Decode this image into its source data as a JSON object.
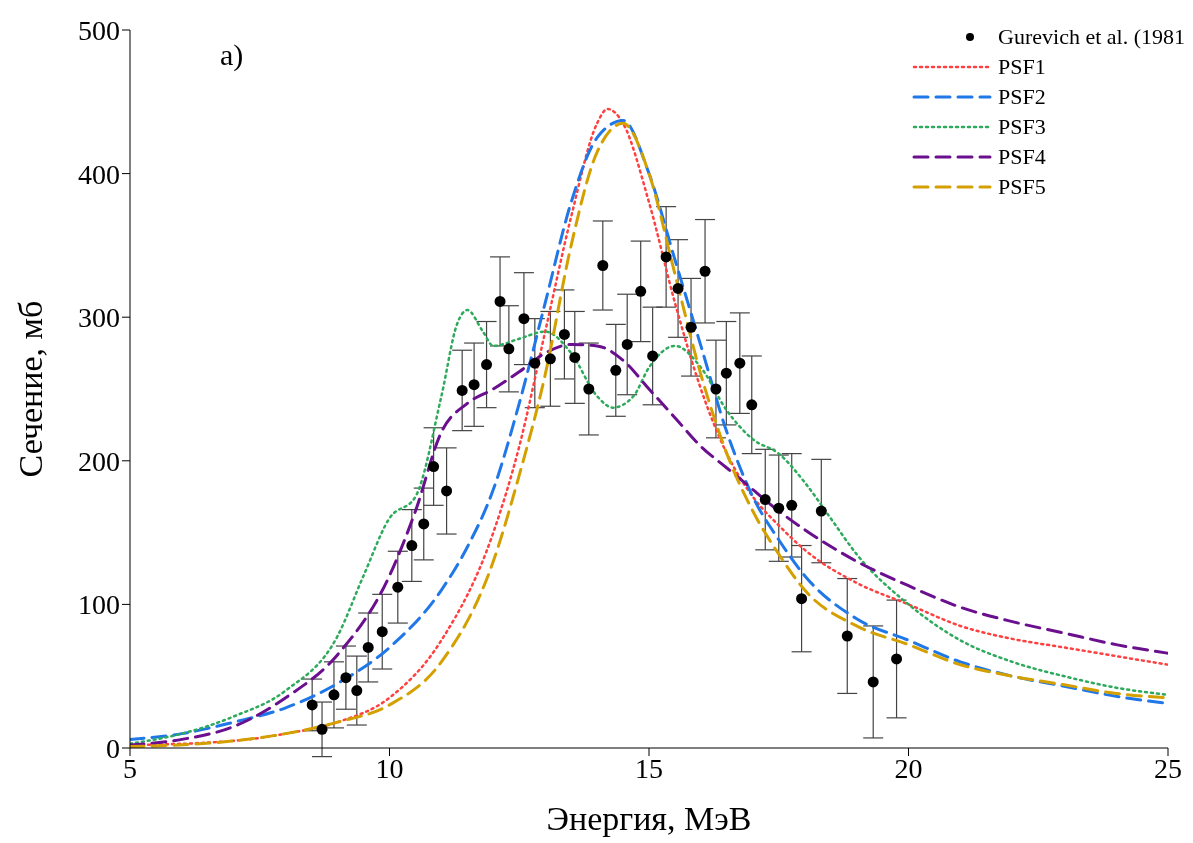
{
  "chart_data": {
    "type": "line",
    "xlabel": "Энергия, МэВ",
    "ylabel": "Сечение, мб",
    "annotations": [
      "a)"
    ],
    "xlim": [
      5,
      25
    ],
    "xticks": [
      5,
      10,
      15,
      20,
      25
    ],
    "ylim": [
      0,
      500
    ],
    "yticks": [
      0,
      100,
      200,
      300,
      400,
      500
    ],
    "grid": false,
    "legend": "top right",
    "series": [
      {
        "name": "Gurevich et al. (1981",
        "type": "scatter",
        "marker": "circle",
        "color": "#000000",
        "x": [
          8.51,
          8.7,
          8.93,
          9.16,
          9.37,
          9.59,
          9.86,
          10.16,
          10.43,
          10.66,
          10.85,
          11.1,
          11.4,
          11.63,
          11.87,
          12.13,
          12.3,
          12.59,
          12.8,
          13.1,
          13.37,
          13.57,
          13.84,
          14.11,
          14.36,
          14.58,
          14.84,
          15.07,
          15.33,
          15.56,
          15.81,
          16.08,
          16.29,
          16.49,
          16.75,
          16.98,
          17.24,
          17.5,
          17.75,
          17.94,
          18.32,
          18.82,
          19.32,
          19.77
        ],
        "values": [
          30,
          13,
          37,
          49,
          40,
          70,
          81,
          112,
          141,
          156,
          196,
          179,
          249,
          253,
          267,
          311,
          278,
          299,
          268,
          271,
          288,
          272,
          250,
          336,
          263,
          281,
          318,
          273,
          342,
          320,
          293,
          332,
          250,
          261,
          268,
          239,
          173,
          167,
          169,
          104,
          165,
          78,
          46,
          62
        ],
        "errors": [
          18,
          19,
          23,
          22,
          24,
          24,
          26,
          25,
          25,
          25,
          27,
          30,
          28,
          29,
          30,
          31,
          30,
          32,
          31,
          33,
          31,
          32,
          32,
          31,
          32,
          35,
          35,
          34,
          35,
          34,
          34,
          36,
          34,
          36,
          35,
          34,
          35,
          37,
          36,
          37,
          36,
          40,
          39,
          41
        ]
      },
      {
        "name": "PSF1",
        "line_style": "dotted",
        "color": "#ff4040",
        "x": [
          5,
          7,
          8,
          9,
          10,
          11,
          12,
          12.5,
          13,
          13.5,
          14,
          14.2,
          14.5,
          15,
          15.5,
          16,
          16.5,
          17,
          17.5,
          18,
          19,
          20,
          21,
          22,
          23,
          24,
          25
        ],
        "values": [
          2,
          5,
          10,
          18,
          35,
          75,
          150,
          210,
          290,
          370,
          435,
          445,
          435,
          380,
          310,
          250,
          205,
          175,
          155,
          138,
          115,
          100,
          85,
          76,
          70,
          64,
          58
        ]
      },
      {
        "name": "PSF2",
        "line_style": "dashed",
        "color": "#1f77e8",
        "x": [
          5,
          6,
          7,
          8,
          9,
          10,
          11,
          11.5,
          12,
          12.5,
          13,
          13.5,
          14,
          14.5,
          15,
          15.5,
          16,
          16.5,
          17,
          17.5,
          18,
          19,
          20,
          21,
          22,
          23,
          24,
          25
        ],
        "values": [
          6,
          10,
          18,
          28,
          45,
          70,
          110,
          140,
          180,
          240,
          310,
          380,
          425,
          437,
          400,
          340,
          280,
          220,
          175,
          145,
          120,
          90,
          75,
          60,
          50,
          43,
          36,
          31
        ]
      },
      {
        "name": "PSF3",
        "line_style": "dotted",
        "color": "#2eaa5c",
        "x": [
          5,
          6,
          7,
          8,
          9,
          9.5,
          10,
          10.5,
          11,
          11.3,
          11.5,
          11.8,
          12,
          12.5,
          13,
          13.5,
          14,
          14.3,
          14.7,
          15,
          15.5,
          16,
          16.5,
          17,
          17.5,
          18,
          18.5,
          19,
          20,
          21,
          22,
          23,
          24,
          25
        ],
        "values": [
          3,
          10,
          22,
          40,
          78,
          120,
          160,
          175,
          245,
          295,
          305,
          290,
          280,
          285,
          290,
          275,
          245,
          237,
          245,
          265,
          280,
          265,
          235,
          215,
          205,
          185,
          160,
          135,
          100,
          75,
          60,
          50,
          42,
          37
        ]
      },
      {
        "name": "PSF4",
        "line_style": "dashed",
        "color": "#6a0f8e",
        "x": [
          5,
          6,
          7,
          8,
          9,
          10,
          10.5,
          11,
          11.5,
          12,
          12.5,
          13,
          13.5,
          14,
          14.5,
          15,
          15.5,
          16,
          16.5,
          17,
          17.5,
          18,
          19,
          20,
          21,
          22,
          23,
          24,
          25
        ],
        "values": [
          2,
          6,
          15,
          35,
          65,
          120,
          165,
          220,
          240,
          250,
          262,
          275,
          281,
          280,
          270,
          250,
          230,
          210,
          195,
          180,
          165,
          152,
          130,
          113,
          98,
          88,
          80,
          72,
          66
        ]
      },
      {
        "name": "PSF5",
        "line_style": "dashed",
        "color": "#d4a000",
        "x": [
          5,
          7,
          8,
          9,
          10,
          11,
          12,
          12.5,
          13,
          13.5,
          14,
          14.5,
          15,
          15.5,
          16,
          16.5,
          17,
          17.5,
          18,
          19,
          20,
          21,
          22,
          23,
          24,
          25
        ],
        "values": [
          1,
          5,
          10,
          18,
          30,
          60,
          130,
          190,
          260,
          350,
          415,
          435,
          400,
          330,
          260,
          205,
          165,
          135,
          110,
          85,
          72,
          58,
          50,
          44,
          38,
          35
        ]
      }
    ]
  }
}
